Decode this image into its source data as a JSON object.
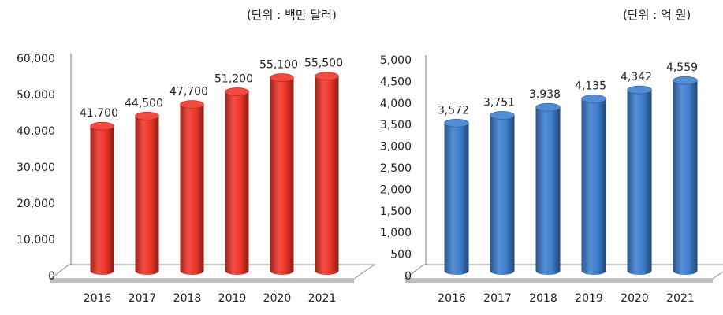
{
  "chart_data": [
    {
      "type": "bar",
      "unit_note": "(단위 : 백만 달러)",
      "categories": [
        "2016",
        "2017",
        "2018",
        "2019",
        "2020",
        "2021"
      ],
      "values": [
        41700,
        44500,
        47700,
        51200,
        55100,
        55500
      ],
      "value_labels": [
        "41,700",
        "44,500",
        "47,700",
        "51,200",
        "55,100",
        "55,500"
      ],
      "ylim": [
        0,
        60000
      ],
      "yticks": [
        0,
        10000,
        20000,
        30000,
        40000,
        50000,
        60000
      ],
      "ytick_labels": [
        "0",
        "10,000",
        "20,000",
        "30,000",
        "40,000",
        "50,000",
        "60,000"
      ],
      "color": "#f0362a",
      "grid": false
    },
    {
      "type": "bar",
      "unit_note": "(단위 : 억 원)",
      "categories": [
        "2016",
        "2017",
        "2018",
        "2019",
        "2020",
        "2021"
      ],
      "values": [
        3572,
        3751,
        3938,
        4135,
        4342,
        4559
      ],
      "value_labels": [
        "3,572",
        "3,751",
        "3,938",
        "4,135",
        "4,342",
        "4,559"
      ],
      "ylim": [
        0,
        5000
      ],
      "yticks": [
        0,
        500,
        1000,
        1500,
        2000,
        2500,
        3000,
        3500,
        4000,
        4500,
        5000
      ],
      "ytick_labels": [
        "0",
        "500",
        "1,000",
        "1,500",
        "2,000",
        "2,500",
        "3,000",
        "3,500",
        "4,000",
        "4,500",
        "5,000"
      ],
      "color": "#3f7fcf",
      "grid": false
    }
  ]
}
